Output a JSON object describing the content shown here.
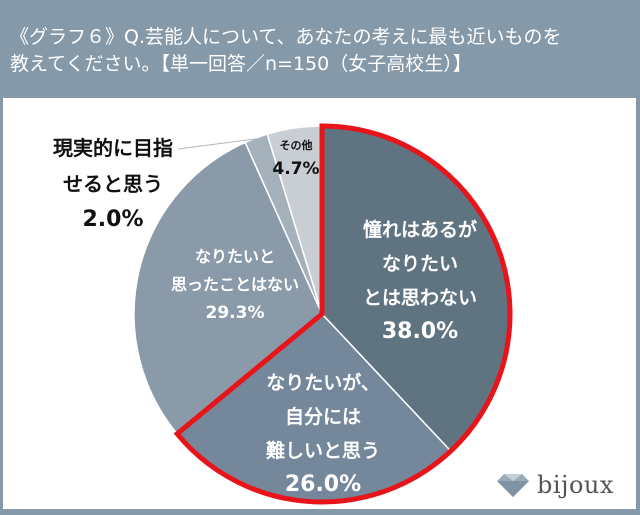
{
  "header": {
    "title_line1": "《グラフ６》Q.芸能人について、あなたの考えに最も近いものを",
    "title_line2": "教えてください。【単一回答／n=150（女子高校生）】"
  },
  "colors": {
    "background": "#8699a8",
    "panel": "#ffffff",
    "highlight_outline": "#e8141a",
    "slice_colors": [
      "#5f7380",
      "#75879a",
      "#8a9aa8",
      "#a4b0ba",
      "#c8ced4"
    ]
  },
  "labels": {
    "s1_l1": "憧れはあるが",
    "s1_l2": "なりたい",
    "s1_l3": "とは思わない",
    "s1_pct": "38.0%",
    "s2_l1": "なりたいが、",
    "s2_l2": "自分には",
    "s2_l3": "難しいと思う",
    "s2_pct": "26.0%",
    "s3_l1": "なりたいと",
    "s3_l2": "思ったことはない",
    "s3_pct": "29.3%",
    "s4_l1": "現実的に目指",
    "s4_l2": "せると思う",
    "s4_pct": "2.0%",
    "s5_l1": "その他",
    "s5_pct": "4.7%"
  },
  "logo": {
    "icon": "diamond-icon",
    "text": "bijoux"
  },
  "chart_data": {
    "type": "pie",
    "title": "《グラフ６》Q.芸能人について、あなたの考えに最も近いものを教えてください。【単一回答／n=150（女子高校生）】",
    "categories": [
      "憧れはあるがなりたいとは思わない",
      "なりたいが、自分には難しいと思う",
      "なりたいと思ったことはない",
      "現実的に目指せると思う",
      "その他"
    ],
    "values": [
      38.0,
      26.0,
      29.3,
      2.0,
      4.7
    ],
    "unit": "%",
    "n": 150,
    "start_angle": "12 o'clock",
    "direction": "clockwise",
    "highlighted": [
      "憧れはあるがなりたいとは思わない",
      "なりたいが、自分には難しいと思う"
    ],
    "highlight_color": "#e8141a"
  }
}
